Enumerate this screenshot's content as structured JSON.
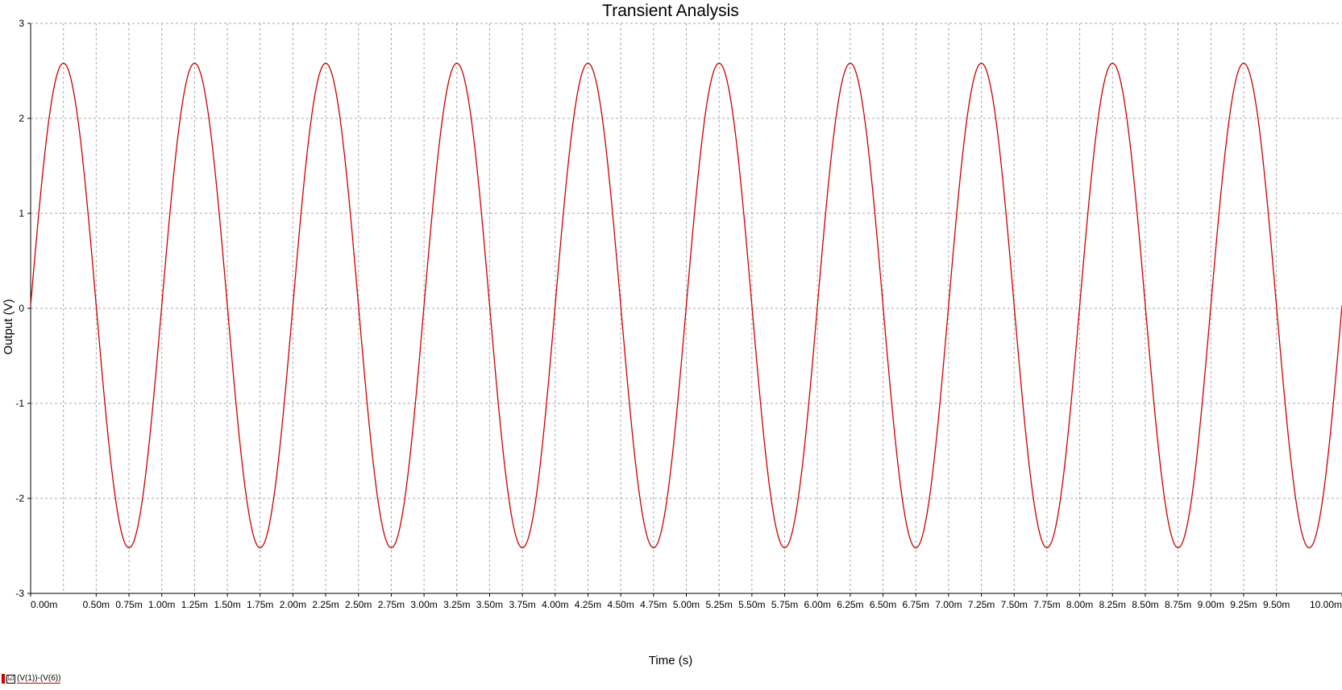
{
  "chart_data": {
    "type": "line",
    "title": "Transient Analysis",
    "xlabel": "Time (s)",
    "ylabel": "Output (V)",
    "xlim": [
      0,
      0.01
    ],
    "ylim": [
      -3,
      3
    ],
    "grid": true,
    "x_tick_values": [
      0,
      0.0005,
      0.00075,
      0.001,
      0.00125,
      0.0015,
      0.00175,
      0.002,
      0.00225,
      0.0025,
      0.00275,
      0.003,
      0.00325,
      0.0035,
      0.00375,
      0.004,
      0.00425,
      0.0045,
      0.00475,
      0.005,
      0.00525,
      0.0055,
      0.00575,
      0.006,
      0.00625,
      0.0065,
      0.00675,
      0.007,
      0.00725,
      0.0075,
      0.00775,
      0.008,
      0.00825,
      0.0085,
      0.00875,
      0.009,
      0.00925,
      0.0095,
      0.01
    ],
    "x_tick_labels": [
      "0.00m",
      "0.50m",
      "0.75m",
      "1.00m",
      "1.25m",
      "1.50m",
      "1.75m",
      "2.00m",
      "2.25m",
      "2.50m",
      "2.75m",
      "3.00m",
      "3.25m",
      "3.50m",
      "3.75m",
      "4.00m",
      "4.25m",
      "4.50m",
      "4.75m",
      "5.00m",
      "5.25m",
      "5.50m",
      "5.75m",
      "6.00m",
      "6.25m",
      "6.50m",
      "6.75m",
      "7.00m",
      "7.25m",
      "7.50m",
      "7.75m",
      "8.00m",
      "8.25m",
      "8.50m",
      "8.75m",
      "9.00m",
      "9.25m",
      "9.50m",
      "10.00m"
    ],
    "y_ticks": [
      3,
      2,
      1,
      0,
      -1,
      -2,
      -3
    ],
    "y_tick_labels": [
      "3",
      "2",
      "1",
      "0",
      "-1",
      "-2",
      "-3"
    ],
    "extra_grid_x": [
      0.00025
    ],
    "series": [
      {
        "name": "(V(1))-(V(6))",
        "color": "#cc0000",
        "waveform": "sine",
        "amplitude": 2.55,
        "offset": 0.03,
        "frequency_hz": 1000,
        "phase_rad": 0,
        "sample_points": [
          {
            "x": 0,
            "y": 0.03
          },
          {
            "x": 0.00025,
            "y": 2.58
          },
          {
            "x": 0.0005,
            "y": 0.03
          },
          {
            "x": 0.00075,
            "y": -2.52
          },
          {
            "x": 0.001,
            "y": 0.03
          }
        ]
      }
    ]
  },
  "legend": {
    "label": "(V(1))-(V(6))",
    "checked": true,
    "check_glyph": "☑",
    "marker_color": "#cc0000"
  }
}
